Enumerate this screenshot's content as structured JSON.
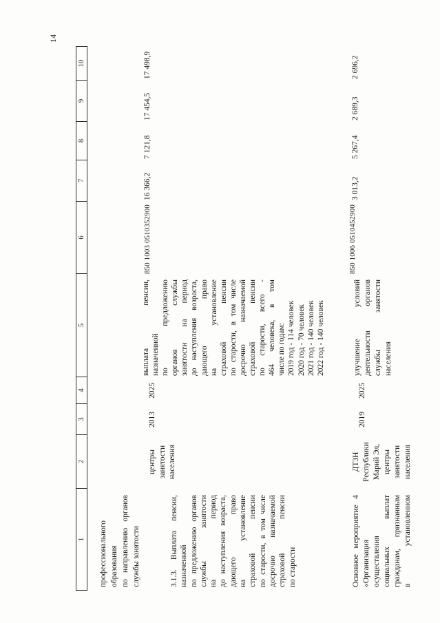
{
  "page": {
    "number": "14"
  },
  "table": {
    "header": [
      "1",
      "2",
      "3",
      "4",
      "5",
      "6",
      "7",
      "8",
      "9",
      "10"
    ],
    "rows": [
      {
        "c1_lines": [
          "профессионального",
          "образования",
          "по направлению органов",
          "службы занятости"
        ]
      },
      {
        "c1_lines": [
          "3.1.3. Выплата пенсии,",
          "назначенной",
          "по предложению органов",
          "службы занятости",
          "на период",
          "до наступления возраста,",
          "дающего право",
          "на установление",
          "страховой пенсии",
          "по старости, в том числе",
          "досрочно назначаемой",
          "страховой пенсии",
          "по старости"
        ],
        "c2_lines": [
          "центры",
          "занятости",
          "населения"
        ],
        "c3": "2013",
        "c4": "2025",
        "c5_lines": [
          "выплата пенсии,",
          "назначенной",
          "по предложению",
          "органов службы",
          "занятости на период",
          "до наступления возраста,",
          "дающего право",
          "на установление",
          "страховой пенсии",
          "по старости, в том числе",
          "досрочно назначаемой",
          "страховой пенсии",
          "по старости, всего -",
          "464 человека, в том",
          "числе по годам:",
          "2019 год - 114 человек",
          "2020 год - 70 человек",
          "2021 год - 140 человек",
          "2022 год - 140 человек"
        ],
        "c6": "850 1003 0510352900",
        "c7": "16 366,2",
        "c8": "7 121,8",
        "c9": "17 454,5",
        "c10": "17 498,9"
      },
      {
        "c1_lines": [
          "Основное мероприятие 4",
          "«Организация",
          "осуществления",
          "социальных выплат",
          "гражданам, признанным",
          "в установленном"
        ],
        "c2_lines": [
          "ДТЗН",
          "Республики",
          "Марий Эл,",
          "центры",
          "занятости",
          "населения"
        ],
        "c3": "2019",
        "c4": "2025",
        "c5_lines": [
          "улучшение условий",
          "деятельности органов",
          "службы занятости",
          "населения"
        ],
        "c6": "850 1006 0510452900",
        "c7": "3 013,2",
        "c8": "5 267,4",
        "c9": "2 689,3",
        "c10": "2 696,2"
      }
    ]
  }
}
